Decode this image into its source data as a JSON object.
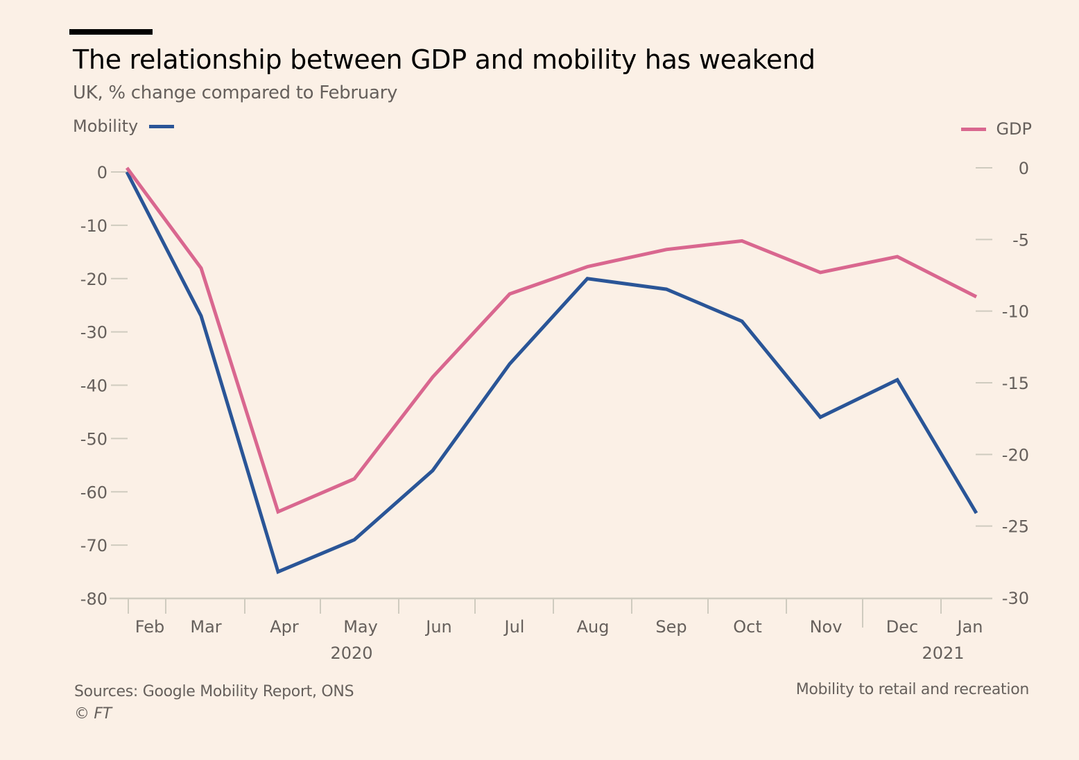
{
  "header": {
    "title": "The relationship between GDP and mobility has weakend",
    "subtitle": "UK, % change compared to February"
  },
  "legend": {
    "left_label": "Mobility",
    "right_label": "GDP"
  },
  "footer": {
    "sources": "Sources: Google Mobility Report, ONS",
    "copyright": "© FT",
    "note": "Mobility to retail and recreation"
  },
  "colors": {
    "background": "#fbf0e6",
    "mobility": "#2a5597",
    "gdp": "#d9678f",
    "gridline": "#cfcbbf",
    "text": "#66605c"
  },
  "chart_data": {
    "type": "line",
    "title": "The relationship between GDP and mobility has weakend",
    "subtitle": "UK, % change compared to February",
    "categories": [
      "Feb",
      "Mar",
      "Apr",
      "May",
      "Jun",
      "Jul",
      "Aug",
      "Sep",
      "Oct",
      "Nov",
      "Dec",
      "Jan"
    ],
    "year_labels": [
      {
        "label": "2020",
        "under": "May"
      },
      {
        "label": "2021",
        "under": "Jan"
      }
    ],
    "series": [
      {
        "name": "Mobility",
        "axis": "left",
        "color": "#2a5597",
        "values": [
          0,
          -27,
          -75,
          -69,
          -56,
          -36,
          -20,
          -22,
          -28,
          -46,
          -39,
          -64
        ]
      },
      {
        "name": "GDP",
        "axis": "right",
        "color": "#d9678f",
        "values": [
          0,
          -7.0,
          -24.0,
          -21.7,
          -14.6,
          -8.8,
          -6.9,
          -5.7,
          -5.1,
          -7.3,
          -6.2,
          -9.0
        ]
      }
    ],
    "left_axis": {
      "label": "Mobility",
      "ylim": [
        -80,
        0
      ],
      "ticks": [
        0,
        -10,
        -20,
        -30,
        -40,
        -50,
        -60,
        -70,
        -80
      ]
    },
    "right_axis": {
      "label": "GDP",
      "ylim": [
        -30,
        0
      ],
      "ticks": [
        0,
        -5,
        -10,
        -15,
        -20,
        -25,
        -30
      ]
    },
    "xlabel": "",
    "grid": false,
    "legend_placement": "top-left (Mobility), top-right (GDP)",
    "source_note": "Sources: Google Mobility Report, ONS"
  }
}
